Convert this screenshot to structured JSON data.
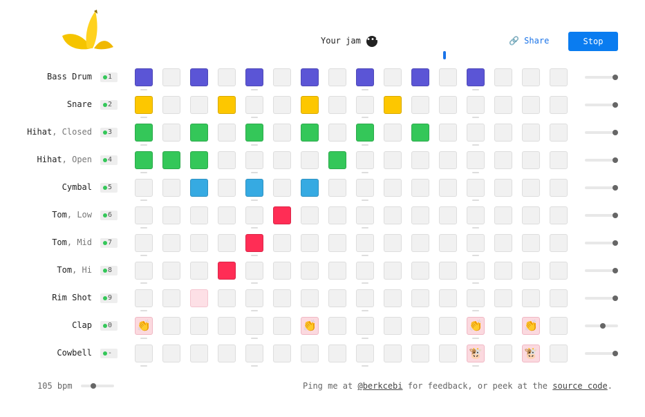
{
  "header": {
    "title": "Your jam",
    "share": "Share",
    "stop": "Stop"
  },
  "tracks": [
    {
      "name": "Bass Drum",
      "key": "1",
      "color": "#5b55d6",
      "volume": 1,
      "steps": [
        1,
        0,
        1,
        0,
        1,
        0,
        1,
        0,
        1,
        0,
        1,
        0,
        1,
        0,
        0,
        0
      ]
    },
    {
      "name": "Snare",
      "key": "2",
      "color": "#fdc700",
      "volume": 1,
      "steps": [
        1,
        0,
        0,
        1,
        0,
        0,
        1,
        0,
        0,
        1,
        0,
        0,
        0,
        0,
        0,
        0
      ]
    },
    {
      "name": "Hihat",
      "suffix": ", Closed",
      "key": "3",
      "color": "#34c759",
      "volume": 1,
      "steps": [
        1,
        0,
        1,
        0,
        1,
        0,
        1,
        0,
        1,
        0,
        1,
        0,
        0,
        0,
        0,
        0
      ]
    },
    {
      "name": "Hihat",
      "suffix": ", Open",
      "key": "4",
      "color": "#34c759",
      "volume": 1,
      "steps": [
        1,
        1,
        1,
        0,
        0,
        0,
        0,
        1,
        0,
        0,
        0,
        0,
        0,
        0,
        0,
        0
      ]
    },
    {
      "name": "Cymbal",
      "key": "5",
      "color": "#36aae2",
      "volume": 1,
      "steps": [
        0,
        0,
        1,
        0,
        1,
        0,
        1,
        0,
        0,
        0,
        0,
        0,
        0,
        0,
        0,
        0
      ]
    },
    {
      "name": "Tom",
      "suffix": ", Low",
      "key": "6",
      "color": "#ff2d55",
      "volume": 1,
      "steps": [
        0,
        0,
        0,
        0,
        0,
        1,
        0,
        0,
        0,
        0,
        0,
        0,
        0,
        0,
        0,
        0
      ]
    },
    {
      "name": "Tom",
      "suffix": ", Mid",
      "key": "7",
      "color": "#ff2d55",
      "volume": 1,
      "steps": [
        0,
        0,
        0,
        0,
        1,
        0,
        0,
        0,
        0,
        0,
        0,
        0,
        0,
        0,
        0,
        0
      ]
    },
    {
      "name": "Tom",
      "suffix": ", Hi",
      "key": "8",
      "color": "#ff2d55",
      "volume": 1,
      "steps": [
        0,
        0,
        0,
        1,
        0,
        0,
        0,
        0,
        0,
        0,
        0,
        0,
        0,
        0,
        0,
        0
      ]
    },
    {
      "name": "Rim Shot",
      "key": "9",
      "color": "#ff2d55",
      "volume": 1,
      "hover": 2,
      "steps": [
        0,
        0,
        0,
        0,
        0,
        0,
        0,
        0,
        0,
        0,
        0,
        0,
        0,
        0,
        0,
        0
      ]
    },
    {
      "name": "Clap",
      "key": "0",
      "color": "#fbd9df",
      "icon": "👏",
      "volume": 0.6,
      "steps": [
        1,
        0,
        0,
        0,
        0,
        0,
        1,
        0,
        0,
        0,
        0,
        0,
        1,
        0,
        1,
        0
      ]
    },
    {
      "name": "Cowbell",
      "key": "-",
      "color": "#fbd9df",
      "icon": "🐮",
      "volume": 1,
      "steps": [
        0,
        0,
        0,
        0,
        0,
        0,
        0,
        0,
        0,
        0,
        0,
        0,
        1,
        0,
        1,
        0
      ]
    }
  ],
  "footer": {
    "tempo": "105 bpm",
    "text1": "Ping me at ",
    "handle": "@berkcebi",
    "text2": " for feedback, or peek at the ",
    "link": "source code",
    "text3": "."
  }
}
